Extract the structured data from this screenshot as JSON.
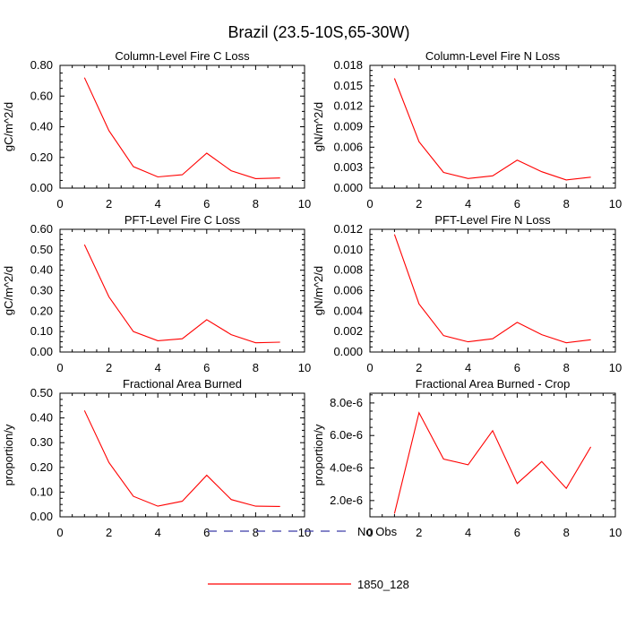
{
  "figure": {
    "title": "Brazil (23.5-10S,65-30W)"
  },
  "legend": {
    "entries": [
      {
        "label": "No Obs",
        "color": "#3a3aa8",
        "style": "dashed"
      },
      {
        "label": "1850_128",
        "color": "#ff0000",
        "style": "solid"
      }
    ]
  },
  "chart_data": [
    {
      "type": "line",
      "title": "Column-Level Fire C Loss",
      "ylabel": "gC/m^2/d",
      "xlabel": "",
      "xlim": [
        0,
        10
      ],
      "ylim": [
        0,
        0.8
      ],
      "x_ticks": [
        0,
        2,
        4,
        6,
        8,
        10
      ],
      "y_ticks": [
        0,
        0.2,
        0.4,
        0.6,
        0.8
      ],
      "y_tick_labels": [
        "0.00",
        "0.20",
        "0.40",
        "0.60",
        "0.80"
      ],
      "series": [
        {
          "name": "1850_128",
          "x": [
            1,
            2,
            3,
            4,
            5,
            6,
            7,
            8,
            9
          ],
          "values": [
            0.72,
            0.375,
            0.14,
            0.073,
            0.087,
            0.228,
            0.113,
            0.062,
            0.066
          ]
        }
      ]
    },
    {
      "type": "line",
      "title": "Column-Level Fire N Loss",
      "ylabel": "gN/m^2/d",
      "xlabel": "",
      "xlim": [
        0,
        10
      ],
      "ylim": [
        0,
        0.018
      ],
      "x_ticks": [
        0,
        2,
        4,
        6,
        8,
        10
      ],
      "y_ticks": [
        0,
        0.003,
        0.006,
        0.009,
        0.012,
        0.015,
        0.018
      ],
      "y_tick_labels": [
        "0.000",
        "0.003",
        "0.006",
        "0.009",
        "0.012",
        "0.015",
        "0.018"
      ],
      "series": [
        {
          "name": "1850_128",
          "x": [
            1,
            2,
            3,
            4,
            5,
            6,
            7,
            8,
            9
          ],
          "values": [
            0.0161,
            0.0068,
            0.0023,
            0.0014,
            0.0018,
            0.0041,
            0.0024,
            0.0012,
            0.0016
          ]
        }
      ]
    },
    {
      "type": "line",
      "title": "PFT-Level Fire C Loss",
      "ylabel": "gC/m^2/d",
      "xlabel": "",
      "xlim": [
        0,
        10
      ],
      "ylim": [
        0,
        0.6
      ],
      "x_ticks": [
        0,
        2,
        4,
        6,
        8,
        10
      ],
      "y_ticks": [
        0,
        0.1,
        0.2,
        0.3,
        0.4,
        0.5,
        0.6
      ],
      "y_tick_labels": [
        "0.00",
        "0.10",
        "0.20",
        "0.30",
        "0.40",
        "0.50",
        "0.60"
      ],
      "series": [
        {
          "name": "1850_128",
          "x": [
            1,
            2,
            3,
            4,
            5,
            6,
            7,
            8,
            9
          ],
          "values": [
            0.525,
            0.27,
            0.1,
            0.055,
            0.065,
            0.158,
            0.085,
            0.045,
            0.048
          ]
        }
      ]
    },
    {
      "type": "line",
      "title": "PFT-Level Fire N Loss",
      "ylabel": "gN/m^2/d",
      "xlabel": "",
      "xlim": [
        0,
        10
      ],
      "ylim": [
        0,
        0.012
      ],
      "x_ticks": [
        0,
        2,
        4,
        6,
        8,
        10
      ],
      "y_ticks": [
        0,
        0.002,
        0.004,
        0.006,
        0.008,
        0.01,
        0.012
      ],
      "y_tick_labels": [
        "0.000",
        "0.002",
        "0.004",
        "0.006",
        "0.008",
        "0.010",
        "0.012"
      ],
      "series": [
        {
          "name": "1850_128",
          "x": [
            1,
            2,
            3,
            4,
            5,
            6,
            7,
            8,
            9
          ],
          "values": [
            0.0115,
            0.0047,
            0.0016,
            0.001,
            0.0013,
            0.0029,
            0.0017,
            0.0009,
            0.0012
          ]
        }
      ]
    },
    {
      "type": "line",
      "title": "Fractional Area Burned",
      "ylabel": "proportion/y",
      "xlabel": "",
      "xlim": [
        0,
        10
      ],
      "ylim": [
        0,
        0.5
      ],
      "x_ticks": [
        0,
        2,
        4,
        6,
        8,
        10
      ],
      "y_ticks": [
        0,
        0.1,
        0.2,
        0.3,
        0.4,
        0.5
      ],
      "y_tick_labels": [
        "0.00",
        "0.10",
        "0.20",
        "0.30",
        "0.40",
        "0.50"
      ],
      "series": [
        {
          "name": "1850_128",
          "x": [
            1,
            2,
            3,
            4,
            5,
            6,
            7,
            8,
            9
          ],
          "values": [
            0.43,
            0.22,
            0.083,
            0.043,
            0.063,
            0.168,
            0.07,
            0.043,
            0.042
          ]
        }
      ]
    },
    {
      "type": "line",
      "title": "Fractional Area Burned - Crop",
      "ylabel": "proportion/y",
      "xlabel": "",
      "xlim": [
        0,
        10
      ],
      "ylim": [
        1e-06,
        8.6e-06
      ],
      "x_ticks": [
        0,
        2,
        4,
        6,
        8,
        10
      ],
      "y_ticks": [
        2e-06,
        4e-06,
        6e-06,
        8e-06
      ],
      "y_tick_labels": [
        "2.0e-6",
        "4.0e-6",
        "6.0e-6",
        "8.0e-6"
      ],
      "series": [
        {
          "name": "1850_128",
          "x": [
            1,
            2,
            3,
            4,
            5,
            6,
            7,
            8,
            9
          ],
          "values": [
            1.2e-06,
            7.4e-06,
            4.55e-06,
            4.2e-06,
            6.3e-06,
            3.05e-06,
            4.4e-06,
            2.75e-06,
            5.3e-06
          ]
        }
      ]
    }
  ]
}
